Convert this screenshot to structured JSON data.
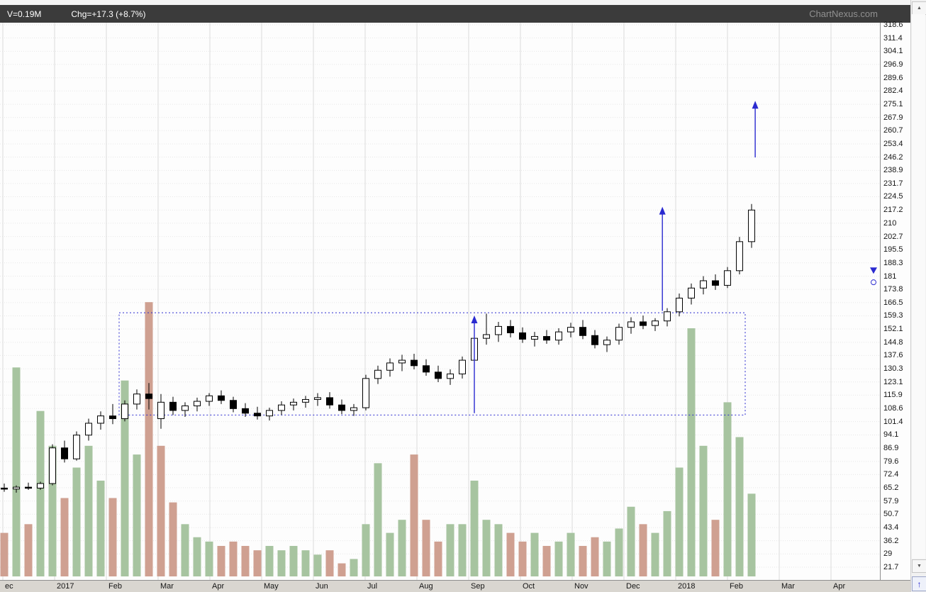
{
  "header": {
    "volume_label": "V=0.19M",
    "change_label": "Chg=+17.3 (+8.7%)",
    "watermark": "ChartNexus.com"
  },
  "colors": {
    "up_candle": "#ffffff",
    "down_candle": "#000000",
    "candle_outline": "#000000",
    "volume_up": "#a7c4a0",
    "volume_down": "#cfa091",
    "annotation_blue": "#2a2ad0",
    "grid_vertical": "#dcdcdc",
    "grid_horizontal": "#e7e7e7",
    "plot_bg": "#fdfdfd",
    "topbar_bg": "#3b3b3b"
  },
  "scrollbar": {
    "up_glyph": "▲",
    "down_glyph": "▼",
    "corner_glyph": "↑"
  },
  "chart_data": {
    "type": "candlestick+volume",
    "title": "",
    "volume_unit": "M",
    "x_ticks": [
      "ec",
      "2017",
      "Feb",
      "Mar",
      "Apr",
      "May",
      "Jun",
      "Jul",
      "Aug",
      "Sep",
      "Oct",
      "Nov",
      "Dec",
      "2018",
      "Feb",
      "Mar",
      "Apr"
    ],
    "y_ticks": [
      "318.6",
      "311.4",
      "304.1",
      "296.9",
      "289.6",
      "282.4",
      "275.1",
      "267.9",
      "260.7",
      "253.4",
      "246.2",
      "238.9",
      "231.7",
      "224.5",
      "217.2",
      "210",
      "202.7",
      "195.5",
      "188.3",
      "181",
      "173.8",
      "166.5",
      "159.3",
      "152.1",
      "144.8",
      "137.6",
      "130.3",
      "123.1",
      "115.9",
      "108.6",
      "101.4",
      "94.1",
      "86.9",
      "79.6",
      "72.4",
      "65.2",
      "57.9",
      "50.7",
      "43.4",
      "36.2",
      "29",
      "21.7"
    ],
    "y_range": [
      21.7,
      318.6
    ],
    "last_close": 217.2,
    "last_volume_m": 0.19,
    "weeks": [
      {
        "o": 65,
        "h": 67.5,
        "l": 63,
        "c": 64.5,
        "v": 0.1
      },
      {
        "o": 64.5,
        "h": 66.5,
        "l": 62.5,
        "c": 65.5,
        "v": 0.48
      },
      {
        "o": 65.5,
        "h": 68,
        "l": 64,
        "c": 65,
        "v": 0.12
      },
      {
        "o": 65,
        "h": 68.5,
        "l": 64,
        "c": 67.5,
        "v": 0.38
      },
      {
        "o": 67.5,
        "h": 89,
        "l": 66.5,
        "c": 87,
        "v": 0.3
      },
      {
        "o": 87,
        "h": 91,
        "l": 79,
        "c": 81,
        "v": 0.18
      },
      {
        "o": 81,
        "h": 96,
        "l": 80,
        "c": 94,
        "v": 0.25
      },
      {
        "o": 94,
        "h": 103,
        "l": 91,
        "c": 100.5,
        "v": 0.3
      },
      {
        "o": 100.5,
        "h": 107,
        "l": 97,
        "c": 104.5,
        "v": 0.22
      },
      {
        "o": 104.5,
        "h": 111,
        "l": 100,
        "c": 103,
        "v": 0.18
      },
      {
        "o": 103,
        "h": 113,
        "l": 101.5,
        "c": 111,
        "v": 0.45
      },
      {
        "o": 111,
        "h": 119,
        "l": 108,
        "c": 116.5,
        "v": 0.28
      },
      {
        "o": 116.5,
        "h": 122.5,
        "l": 108,
        "c": 114,
        "v": 0.63
      },
      {
        "o": 103,
        "h": 116.5,
        "l": 97.5,
        "c": 112,
        "v": 0.3
      },
      {
        "o": 112,
        "h": 115,
        "l": 105,
        "c": 107.5,
        "v": 0.17
      },
      {
        "o": 107.5,
        "h": 112,
        "l": 104,
        "c": 110,
        "v": 0.12
      },
      {
        "o": 110,
        "h": 114.5,
        "l": 107,
        "c": 112.5,
        "v": 0.09
      },
      {
        "o": 112.5,
        "h": 117,
        "l": 110,
        "c": 115.5,
        "v": 0.08
      },
      {
        "o": 115.5,
        "h": 118.5,
        "l": 111,
        "c": 113,
        "v": 0.07
      },
      {
        "o": 113,
        "h": 115,
        "l": 106.5,
        "c": 108.5,
        "v": 0.08
      },
      {
        "o": 108.5,
        "h": 111.5,
        "l": 104,
        "c": 106,
        "v": 0.07
      },
      {
        "o": 106,
        "h": 109.5,
        "l": 102.5,
        "c": 104.5,
        "v": 0.06
      },
      {
        "o": 104.5,
        "h": 109,
        "l": 102,
        "c": 107.5,
        "v": 0.07
      },
      {
        "o": 107.5,
        "h": 112.5,
        "l": 105,
        "c": 110.5,
        "v": 0.06
      },
      {
        "o": 110.5,
        "h": 114,
        "l": 107.5,
        "c": 112,
        "v": 0.07
      },
      {
        "o": 112,
        "h": 115.5,
        "l": 109,
        "c": 113.5,
        "v": 0.06
      },
      {
        "o": 113.5,
        "h": 117,
        "l": 110,
        "c": 114.5,
        "v": 0.05
      },
      {
        "o": 114.5,
        "h": 117.5,
        "l": 108.5,
        "c": 110.5,
        "v": 0.06
      },
      {
        "o": 110.5,
        "h": 113.5,
        "l": 105.5,
        "c": 107.5,
        "v": 0.03
      },
      {
        "o": 107.5,
        "h": 111,
        "l": 104.5,
        "c": 109,
        "v": 0.04
      },
      {
        "o": 109,
        "h": 127,
        "l": 107.5,
        "c": 125,
        "v": 0.12
      },
      {
        "o": 125,
        "h": 132,
        "l": 122,
        "c": 129.5,
        "v": 0.26
      },
      {
        "o": 129.5,
        "h": 136,
        "l": 126,
        "c": 133.5,
        "v": 0.1
      },
      {
        "o": 133.5,
        "h": 138,
        "l": 129,
        "c": 135,
        "v": 0.13
      },
      {
        "o": 135,
        "h": 138.5,
        "l": 130,
        "c": 132,
        "v": 0.28
      },
      {
        "o": 132,
        "h": 135.5,
        "l": 126.5,
        "c": 128.5,
        "v": 0.13
      },
      {
        "o": 128.5,
        "h": 132,
        "l": 123,
        "c": 125,
        "v": 0.08
      },
      {
        "o": 125,
        "h": 130,
        "l": 121.5,
        "c": 127.5,
        "v": 0.12
      },
      {
        "o": 127.5,
        "h": 137,
        "l": 125,
        "c": 135,
        "v": 0.12
      },
      {
        "o": 135,
        "h": 149,
        "l": 133,
        "c": 147,
        "v": 0.22
      },
      {
        "o": 147,
        "h": 160.5,
        "l": 143.5,
        "c": 149,
        "v": 0.13
      },
      {
        "o": 149,
        "h": 156,
        "l": 145,
        "c": 153.5,
        "v": 0.12
      },
      {
        "o": 153.5,
        "h": 157,
        "l": 147.5,
        "c": 150,
        "v": 0.1
      },
      {
        "o": 150,
        "h": 153,
        "l": 144.5,
        "c": 146.5,
        "v": 0.08
      },
      {
        "o": 146.5,
        "h": 150.5,
        "l": 142.5,
        "c": 148,
        "v": 0.1
      },
      {
        "o": 148,
        "h": 151.5,
        "l": 144,
        "c": 146,
        "v": 0.07
      },
      {
        "o": 146,
        "h": 152.5,
        "l": 143.5,
        "c": 150.5,
        "v": 0.08
      },
      {
        "o": 150.5,
        "h": 155.5,
        "l": 147.5,
        "c": 153,
        "v": 0.1
      },
      {
        "o": 153,
        "h": 157,
        "l": 146.5,
        "c": 148.5,
        "v": 0.07
      },
      {
        "o": 148.5,
        "h": 151.5,
        "l": 141.5,
        "c": 143.5,
        "v": 0.09
      },
      {
        "o": 143.5,
        "h": 148,
        "l": 139.5,
        "c": 146,
        "v": 0.08
      },
      {
        "o": 146,
        "h": 155,
        "l": 143.5,
        "c": 153,
        "v": 0.11
      },
      {
        "o": 153,
        "h": 158.5,
        "l": 149.5,
        "c": 156,
        "v": 0.16
      },
      {
        "o": 156,
        "h": 159.5,
        "l": 152,
        "c": 154,
        "v": 0.12
      },
      {
        "o": 154,
        "h": 158,
        "l": 151,
        "c": 156.5,
        "v": 0.1
      },
      {
        "o": 156.5,
        "h": 163.5,
        "l": 153.5,
        "c": 161.5,
        "v": 0.15
      },
      {
        "o": 161.5,
        "h": 171.5,
        "l": 159,
        "c": 169,
        "v": 0.25
      },
      {
        "o": 169,
        "h": 177,
        "l": 165.5,
        "c": 174.5,
        "v": 0.57
      },
      {
        "o": 174.5,
        "h": 181,
        "l": 171,
        "c": 178.5,
        "v": 0.3
      },
      {
        "o": 178.5,
        "h": 182,
        "l": 173.5,
        "c": 176,
        "v": 0.13
      },
      {
        "o": 176,
        "h": 186,
        "l": 174.5,
        "c": 184,
        "v": 0.4
      },
      {
        "o": 184,
        "h": 202.5,
        "l": 182,
        "c": 199.9,
        "v": 0.32
      },
      {
        "o": 199.9,
        "h": 220.5,
        "l": 196.5,
        "c": 217.2,
        "v": 0.19
      }
    ],
    "annotations": {
      "box": {
        "start_index": 10,
        "end_index": 61,
        "top_price": 161,
        "bottom_price": 105
      },
      "arrows": [
        {
          "index": 39,
          "from_price": 106,
          "to_price": 159.5
        },
        {
          "index": 54.6,
          "from_price": 162,
          "to_price": 219
        },
        {
          "index": 62.3,
          "from_price": 246,
          "to_price": 277
        }
      ],
      "marker_triangle_price": 182.3,
      "marker_circle_price": 179.2
    }
  }
}
